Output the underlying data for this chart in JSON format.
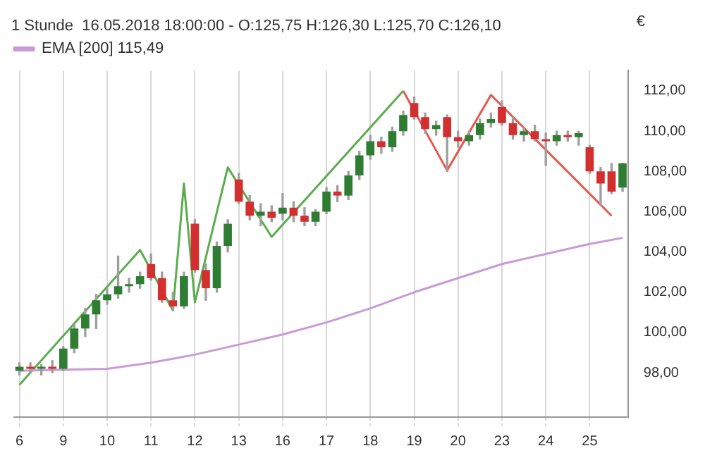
{
  "chart_data": {
    "type": "candlestick",
    "title": "1 Stunde  16.05.2018 18:00:00 - O:125,75 H:126,30 L:125,70 C:126,10",
    "ylabel": "€",
    "categories": [
      "6",
      null,
      null,
      null,
      "9",
      null,
      null,
      null,
      "10",
      null,
      null,
      null,
      "11",
      null,
      null,
      null,
      "12",
      null,
      null,
      null,
      "13",
      null,
      null,
      null,
      "16",
      null,
      null,
      null,
      "17",
      null,
      null,
      null,
      "18",
      null,
      null,
      null,
      "19",
      null,
      null,
      null,
      "20",
      null,
      null,
      null,
      "23",
      null,
      null,
      null,
      "24",
      null,
      null,
      null,
      "25",
      null,
      null,
      null
    ],
    "ohlc": [
      [
        98.1,
        98.5,
        97.9,
        98.3
      ],
      [
        98.3,
        98.5,
        98.0,
        98.2
      ],
      [
        98.2,
        98.4,
        97.9,
        98.3
      ],
      [
        98.3,
        98.6,
        98.0,
        98.2
      ],
      [
        98.2,
        99.3,
        98.1,
        99.2
      ],
      [
        99.2,
        100.4,
        99.0,
        100.2
      ],
      [
        100.2,
        101.2,
        99.8,
        100.9
      ],
      [
        100.9,
        101.9,
        100.2,
        101.6
      ],
      [
        101.6,
        102.2,
        101.4,
        101.9
      ],
      [
        101.9,
        103.8,
        101.7,
        102.3
      ],
      [
        102.3,
        102.7,
        102.0,
        102.4
      ],
      [
        102.4,
        103.0,
        102.2,
        102.8
      ],
      [
        103.4,
        103.9,
        102.6,
        102.7
      ],
      [
        102.7,
        103.0,
        101.5,
        101.6
      ],
      [
        101.6,
        102.0,
        101.1,
        101.3
      ],
      [
        101.3,
        103.0,
        101.2,
        102.8
      ],
      [
        105.4,
        105.6,
        103.0,
        103.1
      ],
      [
        103.1,
        103.4,
        101.6,
        102.2
      ],
      [
        102.2,
        104.5,
        102.0,
        104.3
      ],
      [
        104.3,
        105.6,
        104.0,
        105.4
      ],
      [
        107.6,
        107.9,
        106.4,
        106.5
      ],
      [
        106.5,
        106.8,
        105.6,
        105.8
      ],
      [
        105.8,
        106.4,
        105.3,
        106.0
      ],
      [
        106.0,
        106.3,
        105.5,
        105.7
      ],
      [
        105.9,
        106.9,
        105.6,
        106.2
      ],
      [
        106.2,
        106.5,
        105.5,
        105.8
      ],
      [
        105.8,
        106.2,
        105.3,
        105.5
      ],
      [
        105.5,
        106.1,
        105.3,
        106.0
      ],
      [
        106.0,
        107.2,
        105.9,
        107.0
      ],
      [
        107.0,
        107.3,
        106.5,
        106.8
      ],
      [
        106.8,
        108.0,
        106.6,
        107.8
      ],
      [
        107.8,
        109.0,
        107.6,
        108.8
      ],
      [
        108.8,
        109.8,
        108.6,
        109.5
      ],
      [
        109.5,
        109.7,
        108.9,
        109.2
      ],
      [
        109.2,
        110.2,
        109.0,
        110.0
      ],
      [
        110.0,
        111.0,
        109.8,
        110.8
      ],
      [
        111.4,
        111.7,
        110.6,
        110.7
      ],
      [
        110.7,
        110.9,
        109.9,
        110.1
      ],
      [
        110.1,
        110.5,
        109.8,
        110.3
      ],
      [
        110.7,
        110.8,
        108.0,
        109.7
      ],
      [
        109.7,
        110.0,
        109.2,
        109.5
      ],
      [
        109.5,
        110.0,
        109.3,
        109.8
      ],
      [
        109.8,
        110.6,
        109.6,
        110.4
      ],
      [
        110.4,
        110.9,
        110.2,
        110.6
      ],
      [
        111.2,
        111.5,
        110.3,
        110.4
      ],
      [
        110.4,
        110.7,
        109.6,
        109.8
      ],
      [
        109.8,
        110.2,
        109.5,
        110.0
      ],
      [
        110.0,
        110.3,
        109.5,
        109.6
      ],
      [
        109.6,
        109.9,
        108.3,
        109.5
      ],
      [
        109.5,
        110.0,
        109.3,
        109.8
      ],
      [
        109.8,
        110.0,
        109.5,
        109.7
      ],
      [
        109.7,
        110.0,
        109.3,
        109.9
      ],
      [
        109.2,
        109.3,
        107.9,
        108.0
      ],
      [
        108.0,
        108.2,
        106.3,
        107.4
      ],
      [
        108.0,
        108.4,
        106.9,
        107.0
      ],
      [
        107.2,
        108.4,
        107.0,
        108.4
      ]
    ],
    "colors": [
      "#2e7d32",
      "#d32f2f",
      "#2e7d32",
      "#d32f2f",
      "#2e7d32",
      "#2e7d32",
      "#2e7d32",
      "#2e7d32",
      "#2e7d32",
      "#2e7d32",
      "#2e7d32",
      "#2e7d32",
      "#d32f2f",
      "#d32f2f",
      "#d32f2f",
      "#2e7d32",
      "#d32f2f",
      "#d32f2f",
      "#2e7d32",
      "#2e7d32",
      "#d32f2f",
      "#d32f2f",
      "#2e7d32",
      "#d32f2f",
      "#2e7d32",
      "#d32f2f",
      "#d32f2f",
      "#2e7d32",
      "#2e7d32",
      "#d32f2f",
      "#2e7d32",
      "#2e7d32",
      "#2e7d32",
      "#d32f2f",
      "#2e7d32",
      "#2e7d32",
      "#d32f2f",
      "#d32f2f",
      "#2e7d32",
      "#d32f2f",
      "#d32f2f",
      "#2e7d32",
      "#2e7d32",
      "#2e7d32",
      "#d32f2f",
      "#d32f2f",
      "#2e7d32",
      "#d32f2f",
      "#d32f2f",
      "#2e7d32",
      "#d32f2f",
      "#2e7d32",
      "#d32f2f",
      "#d32f2f",
      "#d32f2f",
      "#2e7d32"
    ],
    "series": [
      {
        "type": "line",
        "name": "EMA [200] 115,49",
        "color": "#c99ad6",
        "values": [
          98.1,
          null,
          null,
          null,
          98.15,
          null,
          null,
          null,
          98.2,
          null,
          null,
          null,
          98.5,
          null,
          null,
          null,
          98.9,
          null,
          null,
          null,
          99.4,
          null,
          null,
          null,
          99.9,
          null,
          null,
          null,
          100.5,
          null,
          null,
          null,
          101.2,
          null,
          null,
          null,
          102.0,
          null,
          null,
          null,
          102.7,
          null,
          null,
          null,
          103.4,
          null,
          null,
          null,
          103.9,
          null,
          null,
          null,
          104.4,
          null,
          null,
          104.7
        ]
      },
      {
        "type": "line",
        "color": "#5aad4e",
        "values": [
          97.4,
          null,
          null,
          null,
          null,
          null,
          null,
          null,
          null,
          null,
          null,
          104.1,
          null,
          null,
          101.1,
          107.4,
          101.5,
          null,
          null,
          108.2,
          null,
          null,
          null,
          104.75,
          null,
          null,
          null,
          null,
          null,
          null,
          null,
          null,
          null,
          null,
          null,
          112.0,
          null,
          null,
          null,
          null,
          null,
          null,
          null,
          null,
          null,
          null,
          null,
          null,
          null,
          null,
          null,
          null,
          null,
          null,
          null,
          null
        ]
      },
      {
        "type": "line",
        "color": "#e8574c",
        "values": [
          null,
          null,
          null,
          null,
          null,
          null,
          null,
          null,
          null,
          null,
          null,
          null,
          null,
          null,
          null,
          null,
          null,
          null,
          null,
          null,
          null,
          null,
          null,
          null,
          null,
          null,
          null,
          null,
          null,
          null,
          null,
          null,
          null,
          null,
          null,
          112.0,
          null,
          null,
          null,
          108.05,
          null,
          null,
          null,
          111.8,
          null,
          null,
          null,
          null,
          null,
          null,
          null,
          null,
          null,
          null,
          105.8,
          null
        ]
      }
    ],
    "ylim": [
      95.8,
      113
    ],
    "yticks": [
      {
        "value": 98,
        "label": "98,00"
      },
      {
        "value": 100,
        "label": "100,00"
      },
      {
        "value": 102,
        "label": "102,00"
      },
      {
        "value": 104,
        "label": "104,00"
      },
      {
        "value": 106,
        "label": "106,00"
      },
      {
        "value": 108,
        "label": "108,00"
      },
      {
        "value": 110,
        "label": "110,00"
      },
      {
        "value": 112,
        "label": "112,00"
      }
    ],
    "grid": "x",
    "legend": "top left",
    "marker": "none"
  }
}
